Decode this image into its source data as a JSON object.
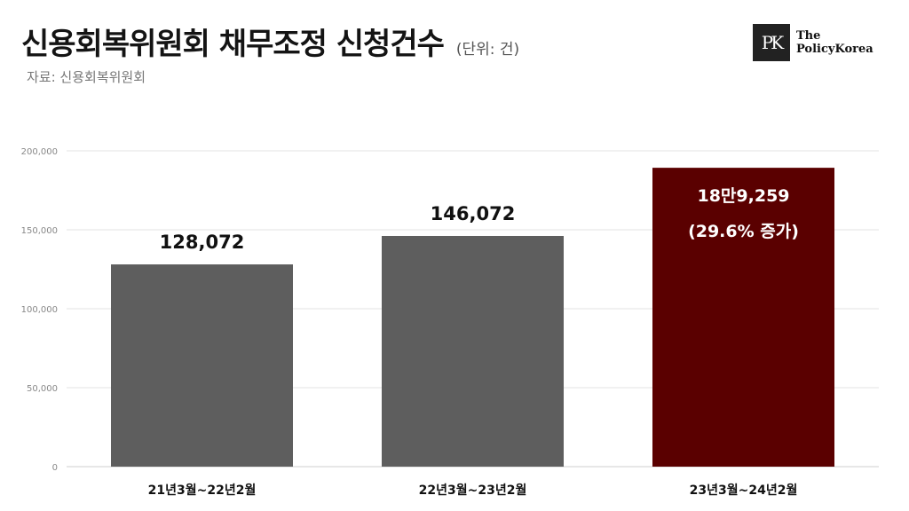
{
  "header": {
    "title": "신용회복위원회 채무조정 신청건수",
    "unit": "(단위: 건)",
    "source": "자료: 신용회복위원회"
  },
  "logo": {
    "mark": "PK",
    "line1": "The",
    "line2": "PolicyKorea"
  },
  "colors": {
    "bar_default": "#5e5e5e",
    "bar_highlight": "#5a0000",
    "grid": "#e3e3e3"
  },
  "chart_data": {
    "type": "bar",
    "categories": [
      "21년3월~22년2월",
      "22년3월~23년2월",
      "23년3월~24년2월"
    ],
    "values": [
      128072,
      146072,
      189259
    ],
    "data_labels": [
      [
        "128,072"
      ],
      [
        "146,072"
      ],
      [
        "18만9,259",
        "(29.6% 증가)"
      ]
    ],
    "highlight_index": 2,
    "ylim": [
      0,
      200000
    ],
    "yticks": [
      0,
      50000,
      100000,
      150000,
      200000
    ],
    "ytick_labels": [
      "0",
      "50,000",
      "100,000",
      "150,000",
      "200,000"
    ],
    "grid": true,
    "legend": "none"
  }
}
